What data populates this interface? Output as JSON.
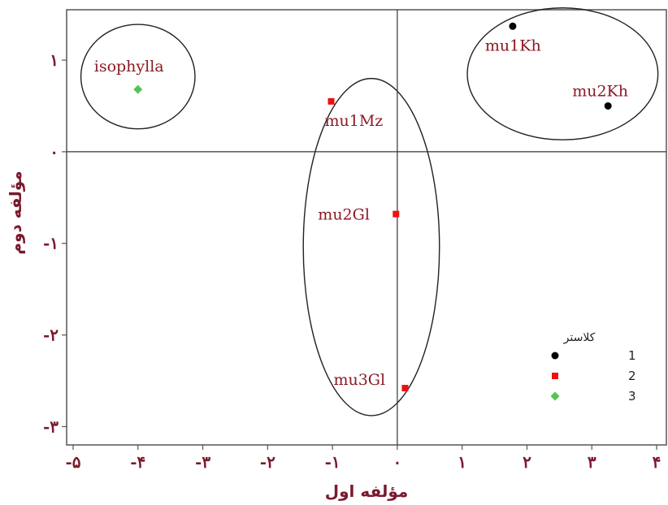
{
  "chart_data": {
    "type": "scatter",
    "xlabel": "مؤلفه اول",
    "ylabel": "مؤلفه دوم",
    "xlim": [
      -5.1,
      4.15
    ],
    "ylim": [
      -3.2,
      1.55
    ],
    "x_ticks": [
      {
        "value": -5,
        "label": "-۵"
      },
      {
        "value": -4,
        "label": "-۴"
      },
      {
        "value": -3,
        "label": "-۳"
      },
      {
        "value": -2,
        "label": "-۲"
      },
      {
        "value": -1,
        "label": "-۱"
      },
      {
        "value": 0,
        "label": "۰"
      },
      {
        "value": 1,
        "label": "۱"
      },
      {
        "value": 2,
        "label": "۲"
      },
      {
        "value": 3,
        "label": "۳"
      },
      {
        "value": 4,
        "label": "۴"
      }
    ],
    "y_ticks": [
      {
        "value": 1,
        "label": "۱"
      },
      {
        "value": 0,
        "label": "۰"
      },
      {
        "value": -1,
        "label": "-۱"
      },
      {
        "value": -2,
        "label": "-۲"
      },
      {
        "value": -3,
        "label": "-۳"
      }
    ],
    "reference_lines": {
      "x": 0,
      "y": 0
    },
    "legend": {
      "title": "کلاستر",
      "placement": "bottom-right"
    },
    "series": [
      {
        "name": "1",
        "marker": "circle",
        "color": "#000000",
        "points": [
          {
            "label": "mu1Kh",
            "x": 1.78,
            "y": 1.37
          },
          {
            "label": "mu2Kh",
            "x": 3.25,
            "y": 0.5
          }
        ]
      },
      {
        "name": "2",
        "marker": "square",
        "color": "#ee1111",
        "points": [
          {
            "label": "mu1Mz",
            "x": -1.02,
            "y": 0.55
          },
          {
            "label": "mu2Gl",
            "x": -0.02,
            "y": -0.68
          },
          {
            "label": "mu3Gl",
            "x": 0.12,
            "y": -2.58
          }
        ]
      },
      {
        "name": "3",
        "marker": "diamond",
        "color": "#55c455",
        "points": [
          {
            "label": "isophylla",
            "x": -4.0,
            "y": 0.68
          }
        ]
      }
    ],
    "cluster_ellipses": [
      {
        "cx": -4.0,
        "cy": 0.82,
        "rx": 0.88,
        "ry": 0.57
      },
      {
        "cx": -0.4,
        "cy": -1.04,
        "rx": 1.05,
        "ry": 1.84
      },
      {
        "cx": 2.55,
        "cy": 0.85,
        "rx": 1.47,
        "ry": 0.72
      }
    ]
  }
}
